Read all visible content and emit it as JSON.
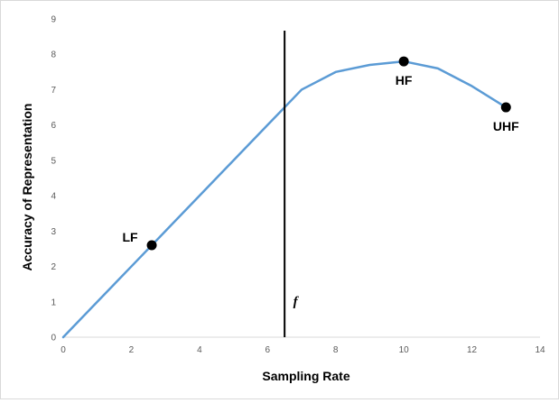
{
  "chart_data": {
    "type": "line",
    "title": "",
    "xlabel": "Sampling Rate",
    "ylabel": "Accuracy of Representation",
    "xlim": [
      0,
      14
    ],
    "ylim": [
      0,
      9
    ],
    "x_ticks": [
      "0",
      "2",
      "4",
      "6",
      "8",
      "10",
      "12",
      "14"
    ],
    "y_ticks": [
      "0",
      "1",
      "2",
      "3",
      "4",
      "5",
      "6",
      "7",
      "8",
      "9"
    ],
    "grid": false,
    "legend": "none",
    "series": [
      {
        "color": "#5b9bd5",
        "x": [
          0,
          1,
          2,
          3,
          4,
          5,
          6,
          7,
          8,
          9,
          10,
          11,
          12,
          13
        ],
        "y": [
          0,
          1,
          2,
          3,
          4,
          5,
          6,
          7,
          7.5,
          7.7,
          7.8,
          7.6,
          7.1,
          6.5
        ]
      }
    ],
    "points": [
      {
        "label": "LF",
        "x": 2.6,
        "y": 2.6
      },
      {
        "label": "HF",
        "x": 10,
        "y": 7.8
      },
      {
        "label": "UHF",
        "x": 13,
        "y": 6.5
      }
    ],
    "vertical_line": {
      "label": "f",
      "x": 6.5
    }
  }
}
